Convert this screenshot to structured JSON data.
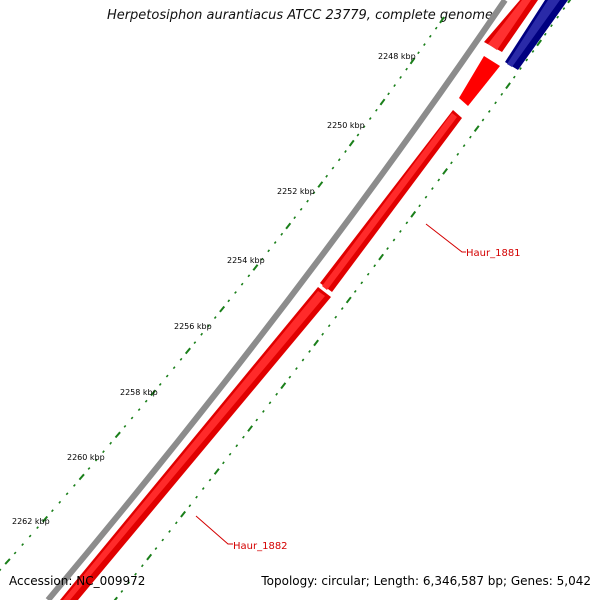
{
  "title": "Herpetosiphon aurantiacus ATCC 23779, complete genome",
  "footer": {
    "accession": "Accession: NC_009972",
    "summary": "Topology: circular; Length: 6,346,587 bp; Genes: 5,042"
  },
  "ticks": [
    "2248 kbp",
    "2250 kbp",
    "2252 kbp",
    "2254 kbp",
    "2256 kbp",
    "2258 kbp",
    "2260 kbp",
    "2262 kbp"
  ],
  "genes": [
    "Haur_1881",
    "Haur_1882"
  ],
  "colors": {
    "forward_gene": "#ff0000",
    "reverse_gene": "#000080",
    "backbone": "#8c8c8c",
    "ticks": "#1a7f1a",
    "gene_label": "#d40000"
  }
}
